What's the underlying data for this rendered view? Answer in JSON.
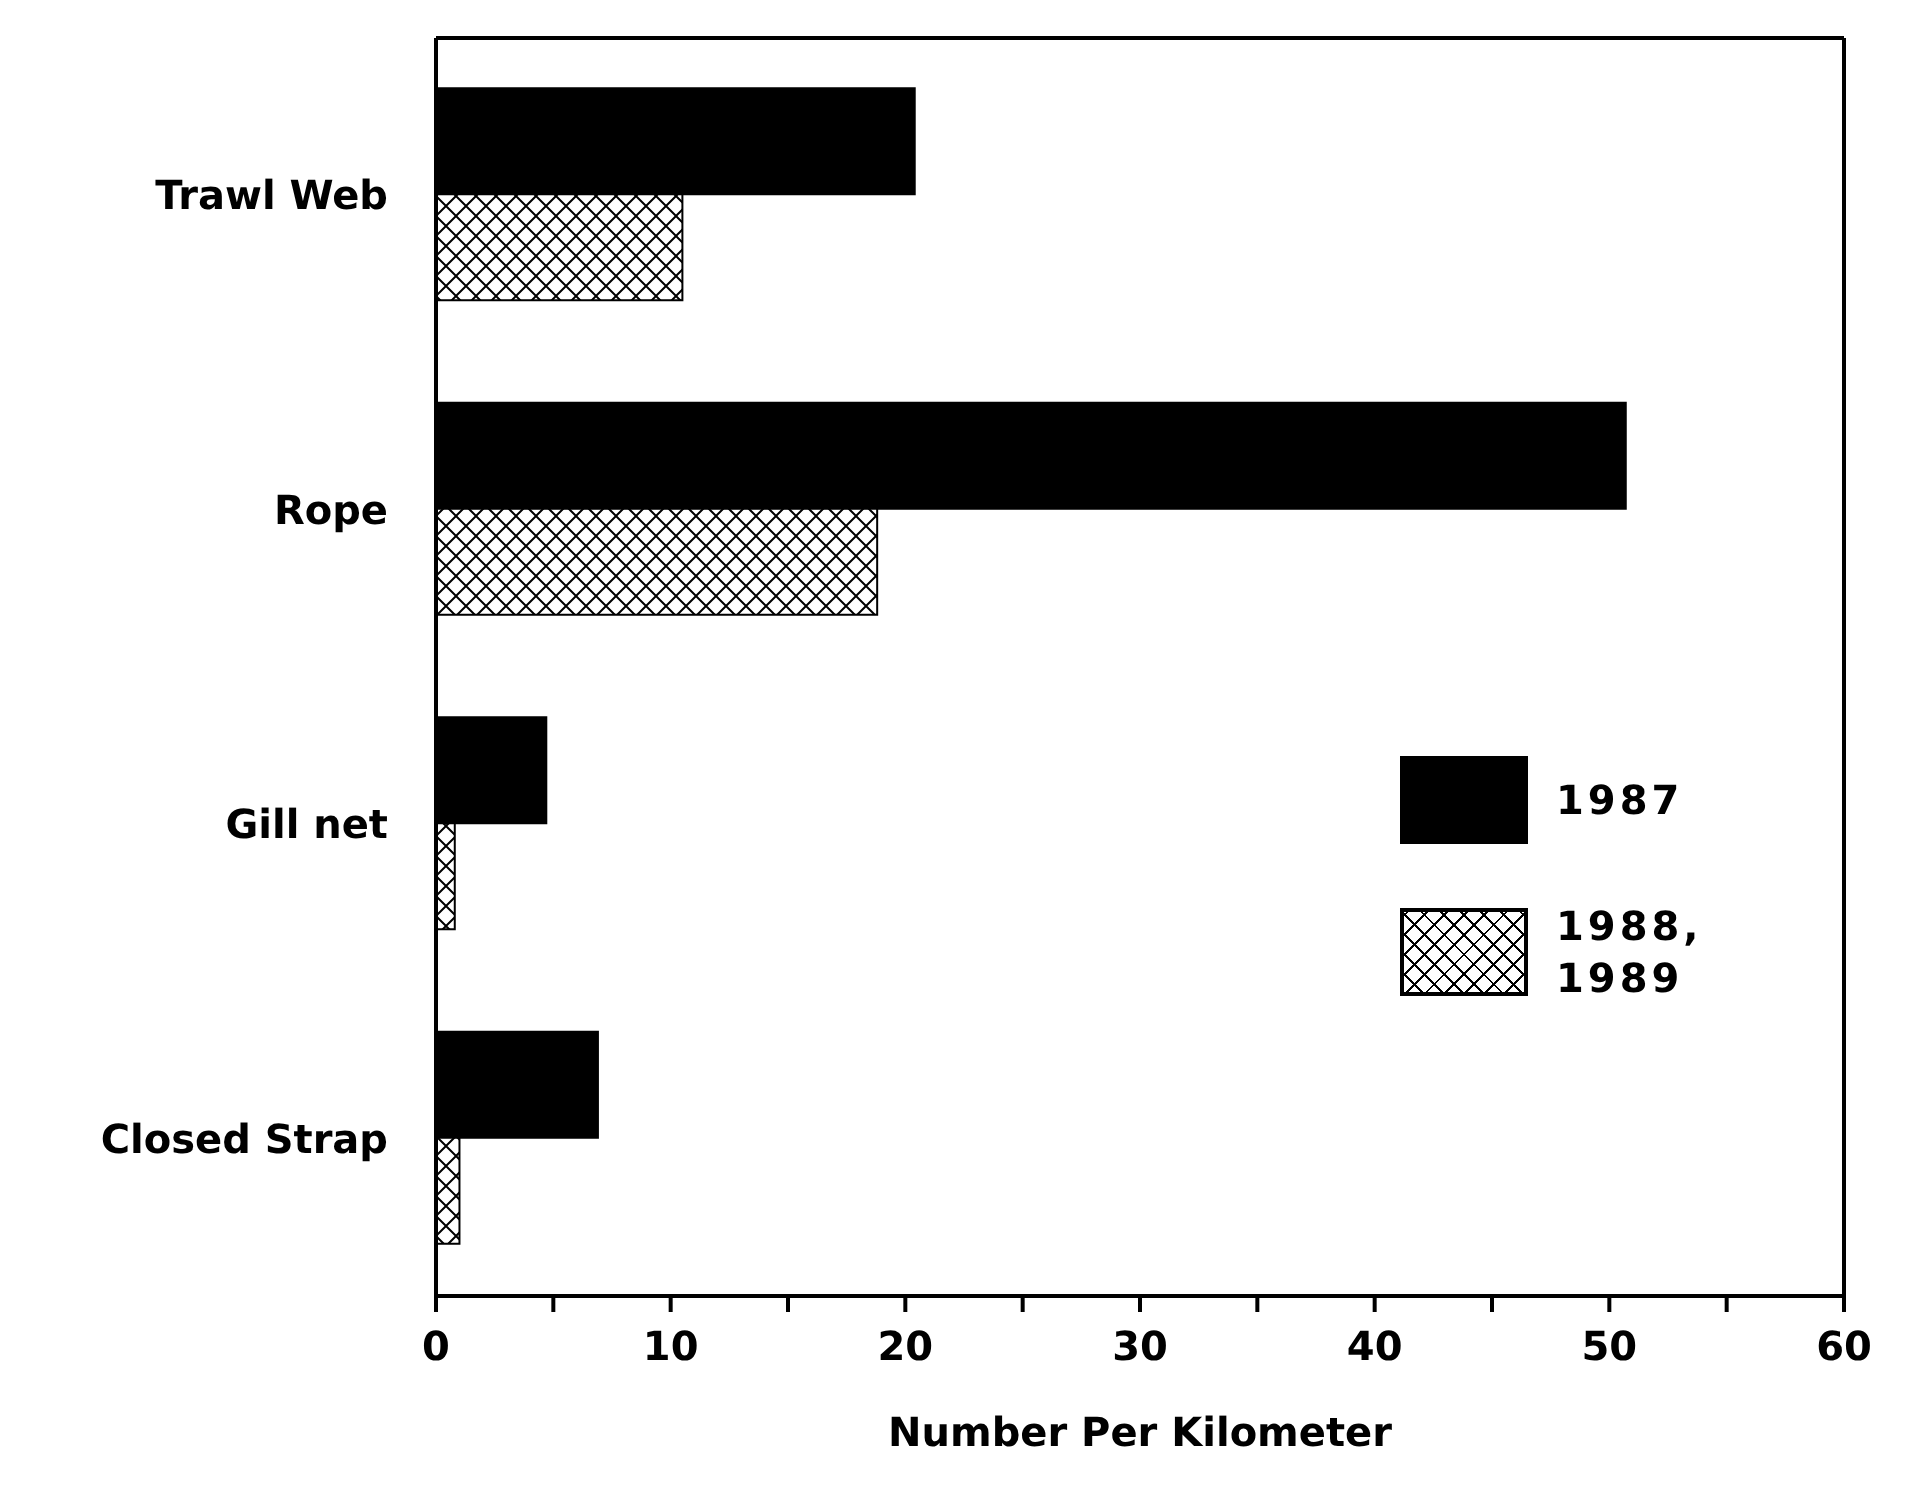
{
  "chart_data": {
    "type": "bar",
    "orientation": "horizontal",
    "xlabel": "Number Per Kilometer",
    "categories": [
      "Trawl Web",
      "Rope",
      "Gill net",
      "Closed Strap"
    ],
    "series": [
      {
        "name": "1987",
        "color": "#000000",
        "values": [
          20.4,
          50.7,
          4.7,
          6.9
        ]
      },
      {
        "name": "1988, 1989",
        "color": "#000000",
        "values": [
          10.5,
          18.8,
          0.8,
          1.0
        ]
      }
    ],
    "xlim": [
      0,
      60
    ],
    "xticks": [
      0,
      {
        "value": 5,
        "label": null
      },
      10,
      {
        "value": 15,
        "label": null
      },
      20,
      {
        "value": 25,
        "label": null
      },
      30,
      {
        "value": 35,
        "label": null
      },
      40,
      {
        "value": 45,
        "label": null
      },
      50,
      {
        "value": 55,
        "label": null
      },
      60
    ],
    "grid": false,
    "legend": "right"
  }
}
